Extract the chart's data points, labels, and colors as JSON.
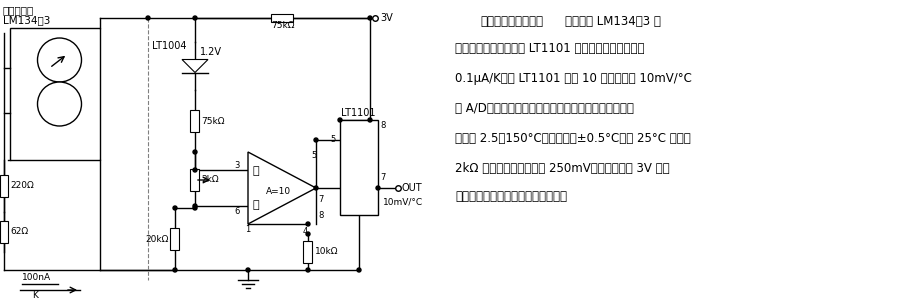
{
  "bg_color": "#ffffff",
  "line_color": "#000000",
  "text_color": "#000000",
  "description_lines": [
    "微功耗温度测量电路    电路采用 LM134－3 温",
    "度传感器和仪器放大器 LT1101 组成。传感器灵敏度为",
    "0.1μA/K，经 LT1101 放大 10 倍后可输出 10mV/°C",
    "送 A/D变换及数字显示等电路（此图略去）。测量温度",
    "范围为 2.5～150°C，精度可达±0.5°C。在 25°C 时调节",
    "2kΩ 电位置，可使输出为 250mV。此电路可用 3V 电池",
    "供电。适用于温度遥测的工业场合。"
  ]
}
